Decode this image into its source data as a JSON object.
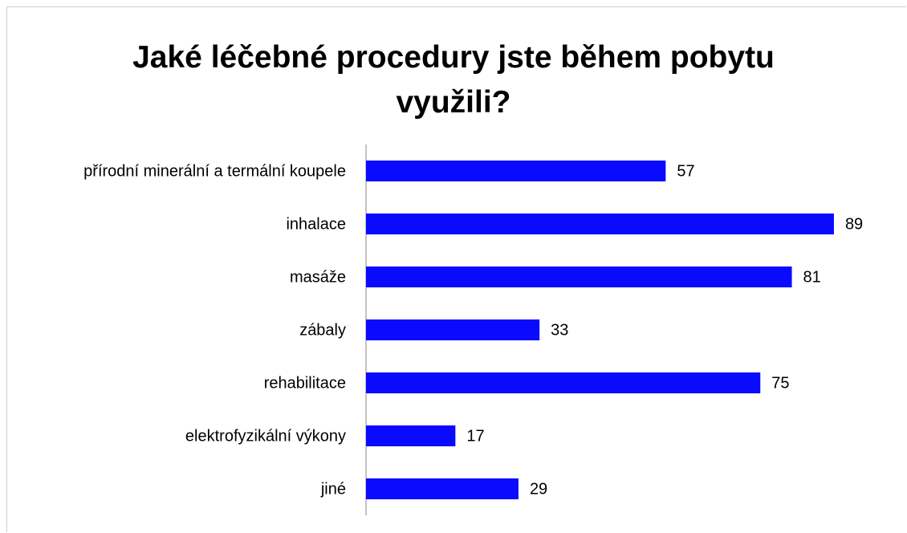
{
  "chart_data": {
    "type": "bar",
    "orientation": "horizontal",
    "title": "Jaké léčebné procedury jste během pobytu využili?",
    "categories": [
      "přírodní minerální a termální koupele",
      "inhalace",
      "masáže",
      "zábaly",
      "rehabilitace",
      "elektrofyzikální výkony",
      "jiné"
    ],
    "values": [
      57,
      89,
      81,
      33,
      75,
      17,
      29
    ],
    "color": "#0a0aff"
  }
}
